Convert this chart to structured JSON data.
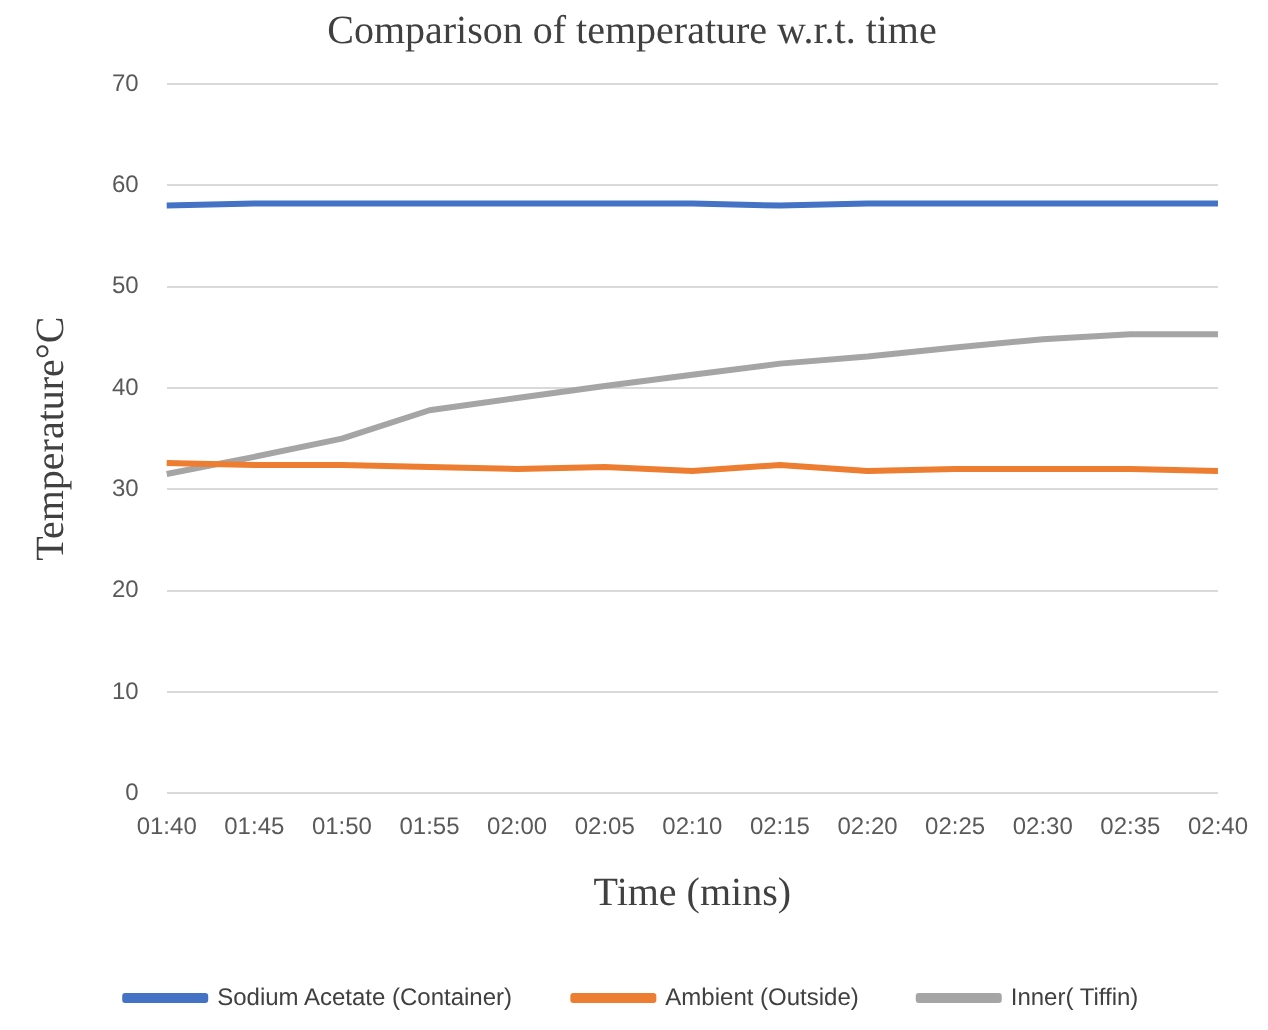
{
  "chart_data": {
    "type": "line",
    "title": "Comparison of temperature w.r.t. time",
    "xlabel": "Time (mins)",
    "ylabel": "Temperature°C",
    "categories": [
      "01:40",
      "01:45",
      "01:50",
      "01:55",
      "02:00",
      "02:05",
      "02:10",
      "02:15",
      "02:20",
      "02:25",
      "02:30",
      "02:35",
      "02:40"
    ],
    "series": [
      {
        "name": "Sodium Acetate (Container)",
        "color": "#4472c4",
        "values": [
          58,
          58.2,
          58.2,
          58.2,
          58.2,
          58.2,
          58.2,
          58,
          58.2,
          58.2,
          58.2,
          58.2,
          58.2
        ]
      },
      {
        "name": "Ambient (Outside)",
        "color": "#ed7d31",
        "values": [
          32.6,
          32.4,
          32.4,
          32.2,
          32,
          32.2,
          31.8,
          32.4,
          31.8,
          32,
          32,
          32,
          31.8
        ]
      },
      {
        "name": "Inner( Tiffin)",
        "color": "#a5a5a5",
        "values": [
          31.5,
          33.2,
          35,
          37.8,
          39,
          40.2,
          41.3,
          42.4,
          43.1,
          44,
          44.8,
          45.3,
          45.3
        ]
      }
    ],
    "ylim": [
      0,
      70
    ],
    "yticks": [
      0,
      10,
      20,
      30,
      40,
      50,
      60,
      70
    ],
    "grid": "y",
    "legend": "bottom",
    "marker": "none",
    "line_style": "solid"
  }
}
